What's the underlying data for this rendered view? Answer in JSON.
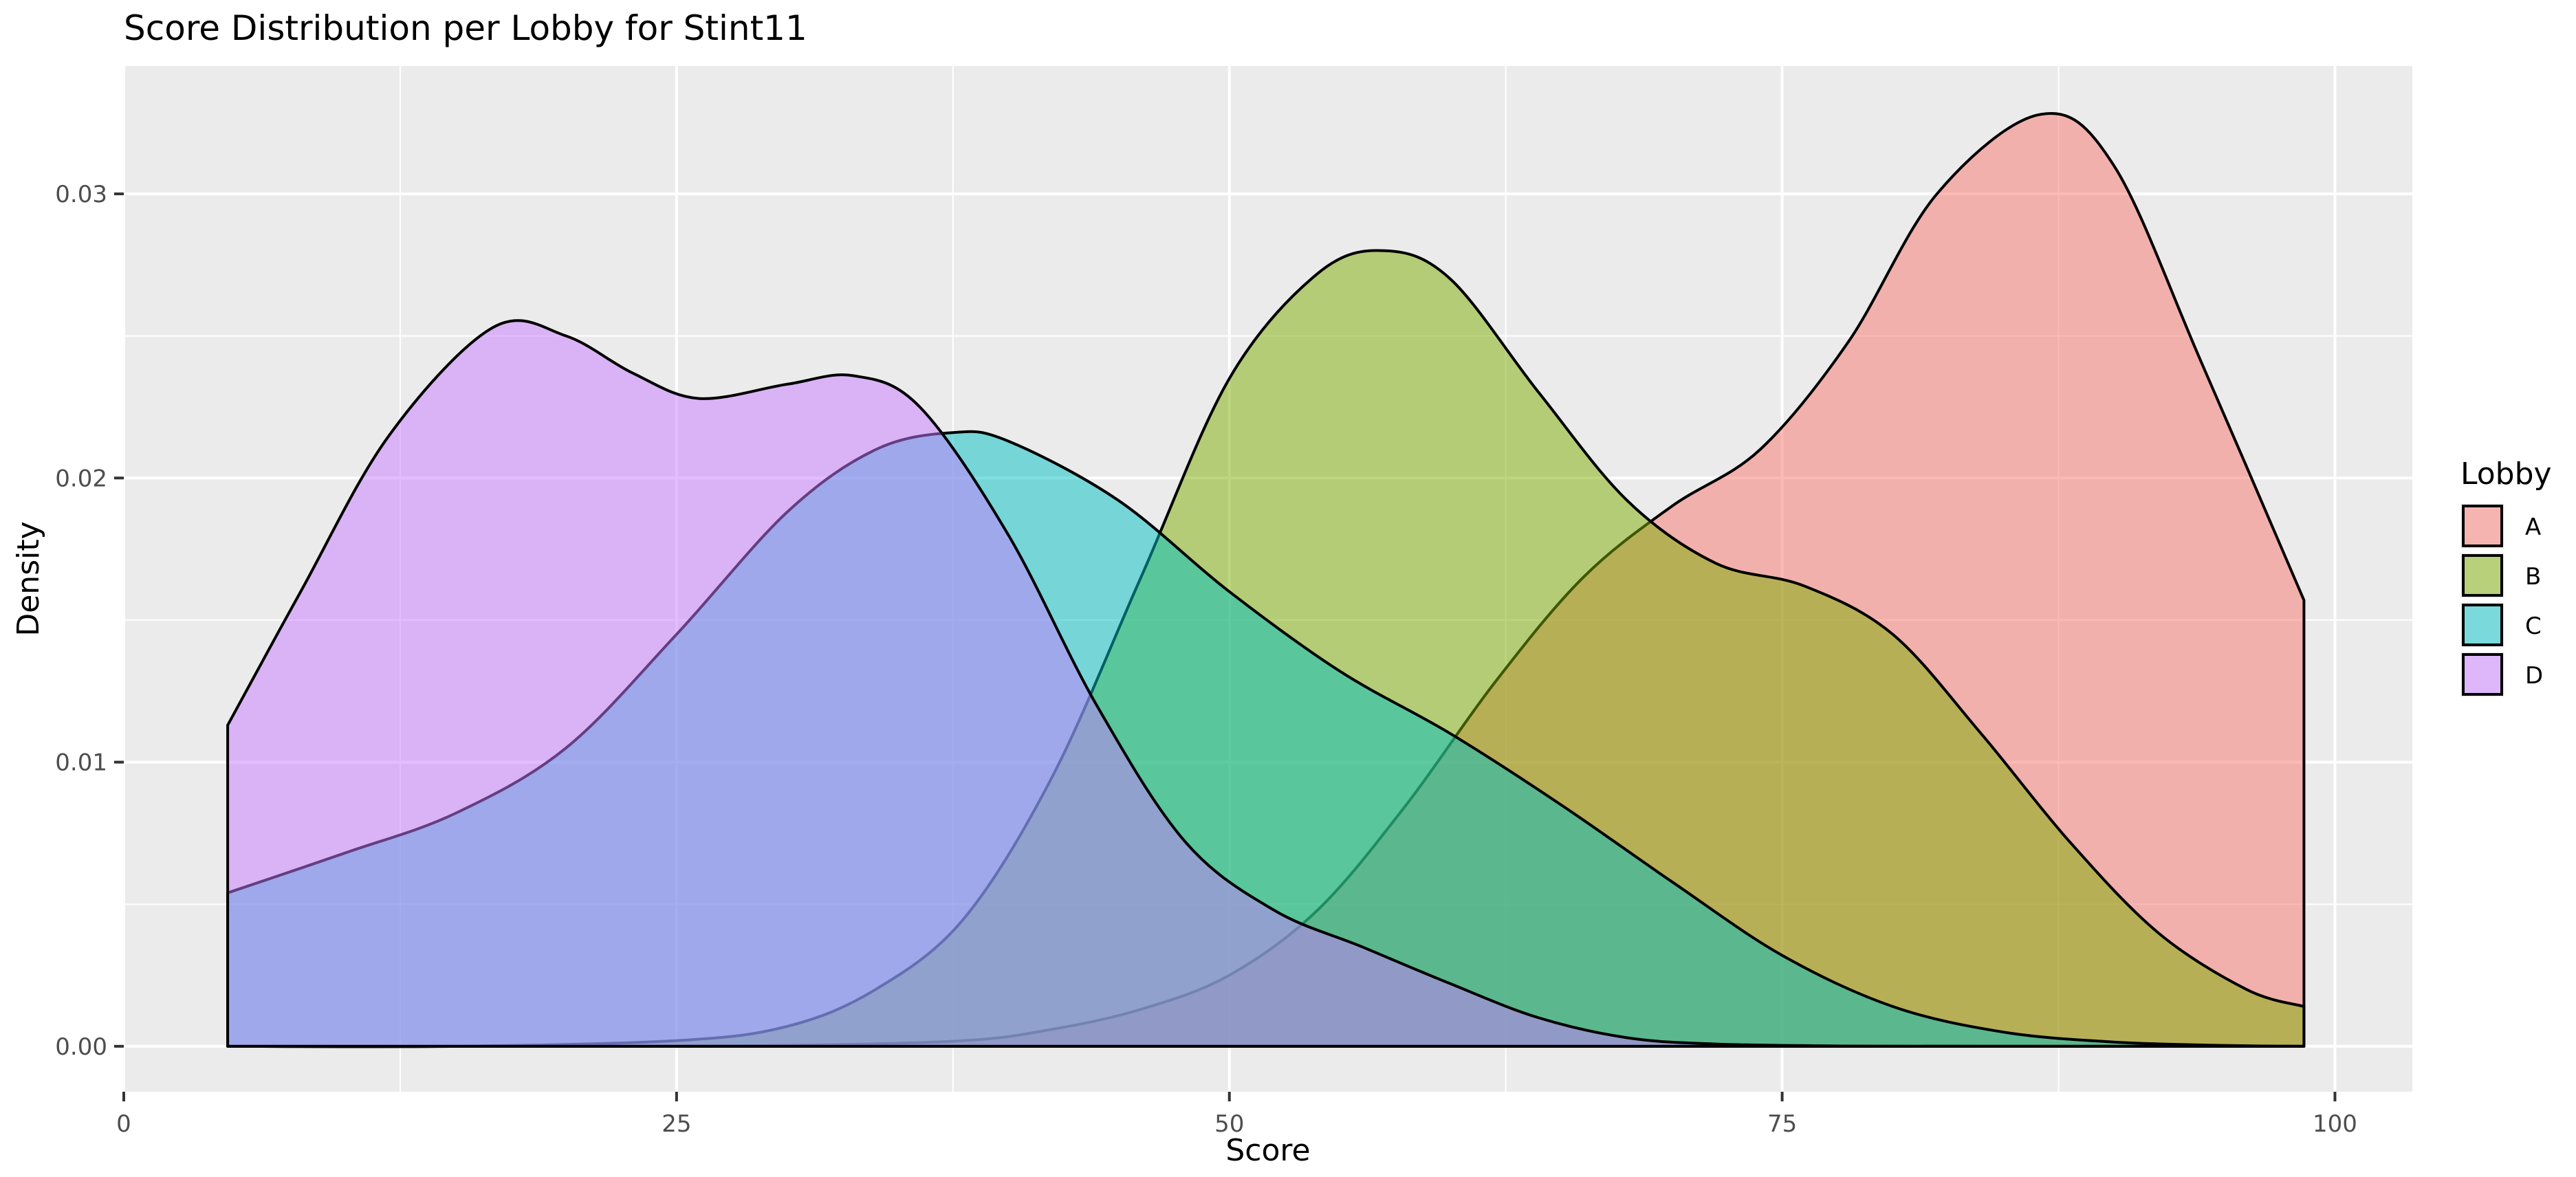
{
  "chart_data": {
    "type": "area",
    "title": "Score Distribution per Lobby for Stint11",
    "xlabel": "Score",
    "ylabel": "Density",
    "xlim": [
      0,
      103.5
    ],
    "ylim": [
      -0.0016,
      0.0345
    ],
    "x_ticks": [
      0,
      25,
      50,
      75,
      100
    ],
    "x_tick_labels": [
      "0",
      "25",
      "50",
      "75",
      "100"
    ],
    "y_ticks": [
      0.0,
      0.01,
      0.02,
      0.03
    ],
    "y_tick_labels": [
      "0.00",
      "0.01",
      "0.02",
      "0.03"
    ],
    "grid": true,
    "legend": {
      "title": "Lobby",
      "position": "right"
    },
    "series": [
      {
        "name": "A",
        "color": "#F8766D",
        "x": [
          4.7,
          20,
          30,
          38,
          42,
          46,
          50,
          54,
          58,
          62,
          66,
          70,
          74,
          78,
          82,
          86.7,
          90,
          94,
          98.6
        ],
        "y": [
          0.0,
          0.0,
          3e-05,
          0.0002,
          0.0006,
          0.0013,
          0.0025,
          0.0048,
          0.0085,
          0.0128,
          0.0165,
          0.019,
          0.021,
          0.0248,
          0.03,
          0.0328,
          0.031,
          0.024,
          0.0157
        ]
      },
      {
        "name": "B",
        "color": "#7CAE00",
        "x": [
          4.7,
          15,
          25,
          30,
          34,
          38,
          42,
          46,
          50,
          54,
          57,
          60,
          64,
          68,
          72,
          76,
          80,
          84,
          88,
          92,
          96,
          98.6
        ],
        "y": [
          0.0,
          0.0,
          0.0002,
          0.0007,
          0.002,
          0.0045,
          0.0095,
          0.0165,
          0.0235,
          0.0272,
          0.028,
          0.027,
          0.023,
          0.0192,
          0.017,
          0.0162,
          0.0145,
          0.011,
          0.0072,
          0.004,
          0.002,
          0.0014
        ]
      },
      {
        "name": "C",
        "color": "#00BFC4",
        "x": [
          4.7,
          10,
          15,
          20,
          25,
          30,
          34,
          37.5,
          40,
          45,
          50,
          55,
          60,
          65,
          70,
          75,
          80,
          85,
          90,
          95,
          98.6
        ],
        "y": [
          0.0054,
          0.0068,
          0.0082,
          0.0105,
          0.0145,
          0.0188,
          0.021,
          0.0216,
          0.0213,
          0.0192,
          0.016,
          0.0132,
          0.011,
          0.0085,
          0.0058,
          0.0032,
          0.0014,
          0.0005,
          0.00015,
          3e-05,
          0.0
        ]
      },
      {
        "name": "D",
        "color": "#C77CFF",
        "x": [
          4.7,
          8,
          12,
          16.7,
          20,
          23,
          26,
          30,
          33,
          36,
          40,
          44,
          48,
          52,
          56,
          60,
          64,
          68,
          72,
          78,
          85,
          98.6
        ],
        "y": [
          0.0113,
          0.016,
          0.0215,
          0.0253,
          0.025,
          0.0237,
          0.0228,
          0.0233,
          0.0236,
          0.0225,
          0.018,
          0.012,
          0.0072,
          0.0048,
          0.0035,
          0.0022,
          0.001,
          0.0003,
          8e-05,
          1e-05,
          0.0,
          0.0
        ]
      }
    ]
  }
}
